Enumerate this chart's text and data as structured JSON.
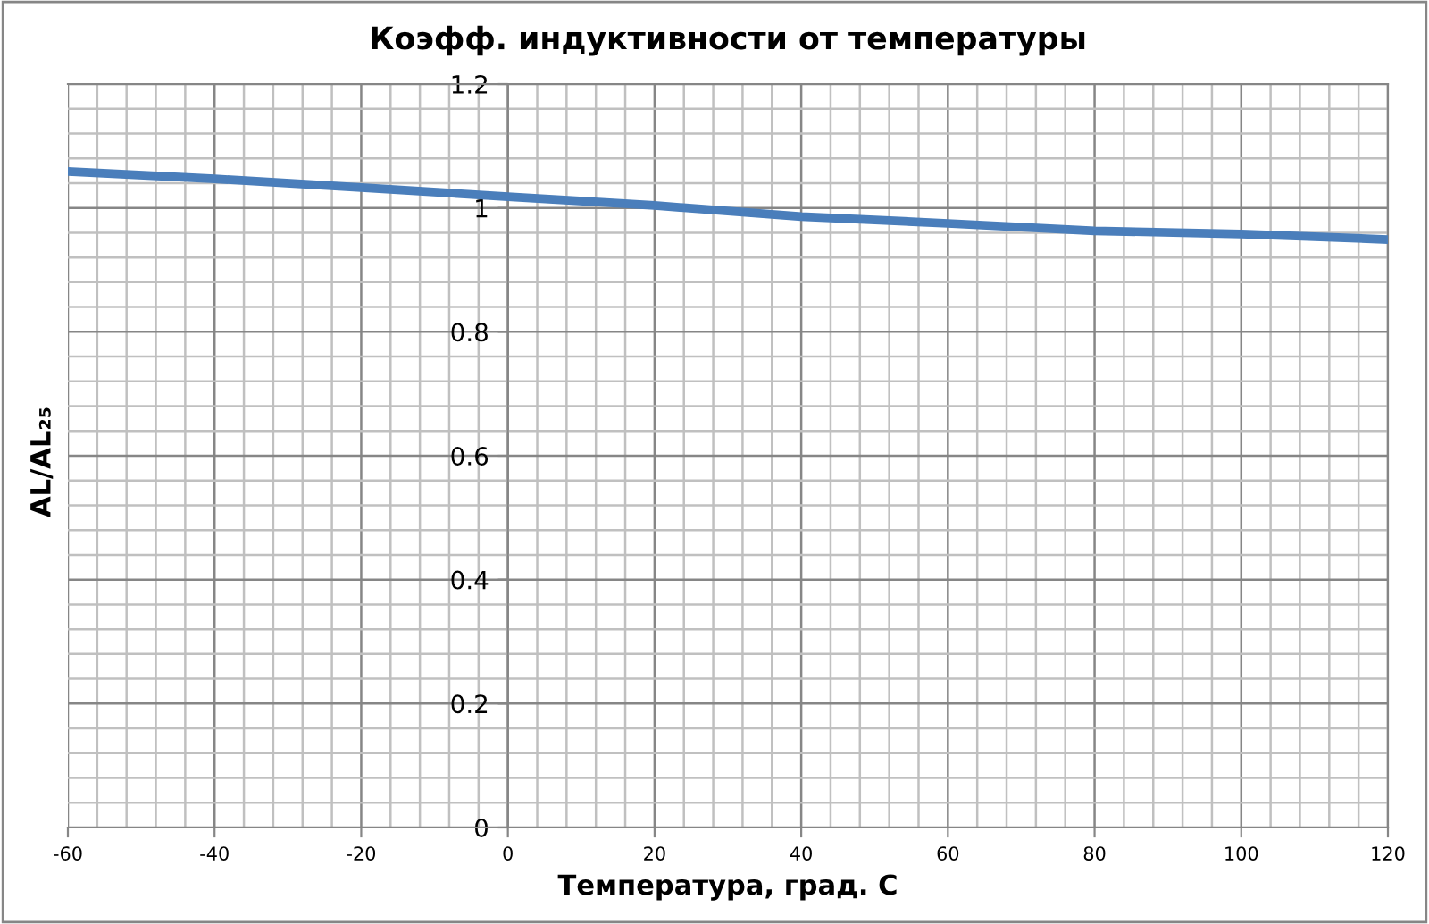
{
  "chart_data": {
    "type": "line",
    "title": "Коэфф. индуктивности от температуры",
    "xlabel": "Температура, град. С",
    "ylabel": "AL/AL₂₅",
    "x": [
      -60,
      -40,
      -20,
      0,
      20,
      40,
      60,
      80,
      100,
      120
    ],
    "series": [
      {
        "color": "#4a7ebb",
        "values": [
          1.059,
          1.047,
          1.033,
          1.018,
          1.004,
          0.986,
          0.975,
          0.963,
          0.958,
          0.949
        ]
      }
    ],
    "xlim": [
      -60,
      120
    ],
    "xticks": [
      -60,
      -40,
      -20,
      0,
      20,
      40,
      60,
      80,
      100,
      120
    ],
    "ylim": [
      0,
      1.2
    ],
    "yticks": [
      0,
      0.2,
      0.4,
      0.6,
      0.8,
      1,
      1.2
    ],
    "grid": true,
    "legend": false,
    "marker": "none",
    "line_style": "solid"
  }
}
